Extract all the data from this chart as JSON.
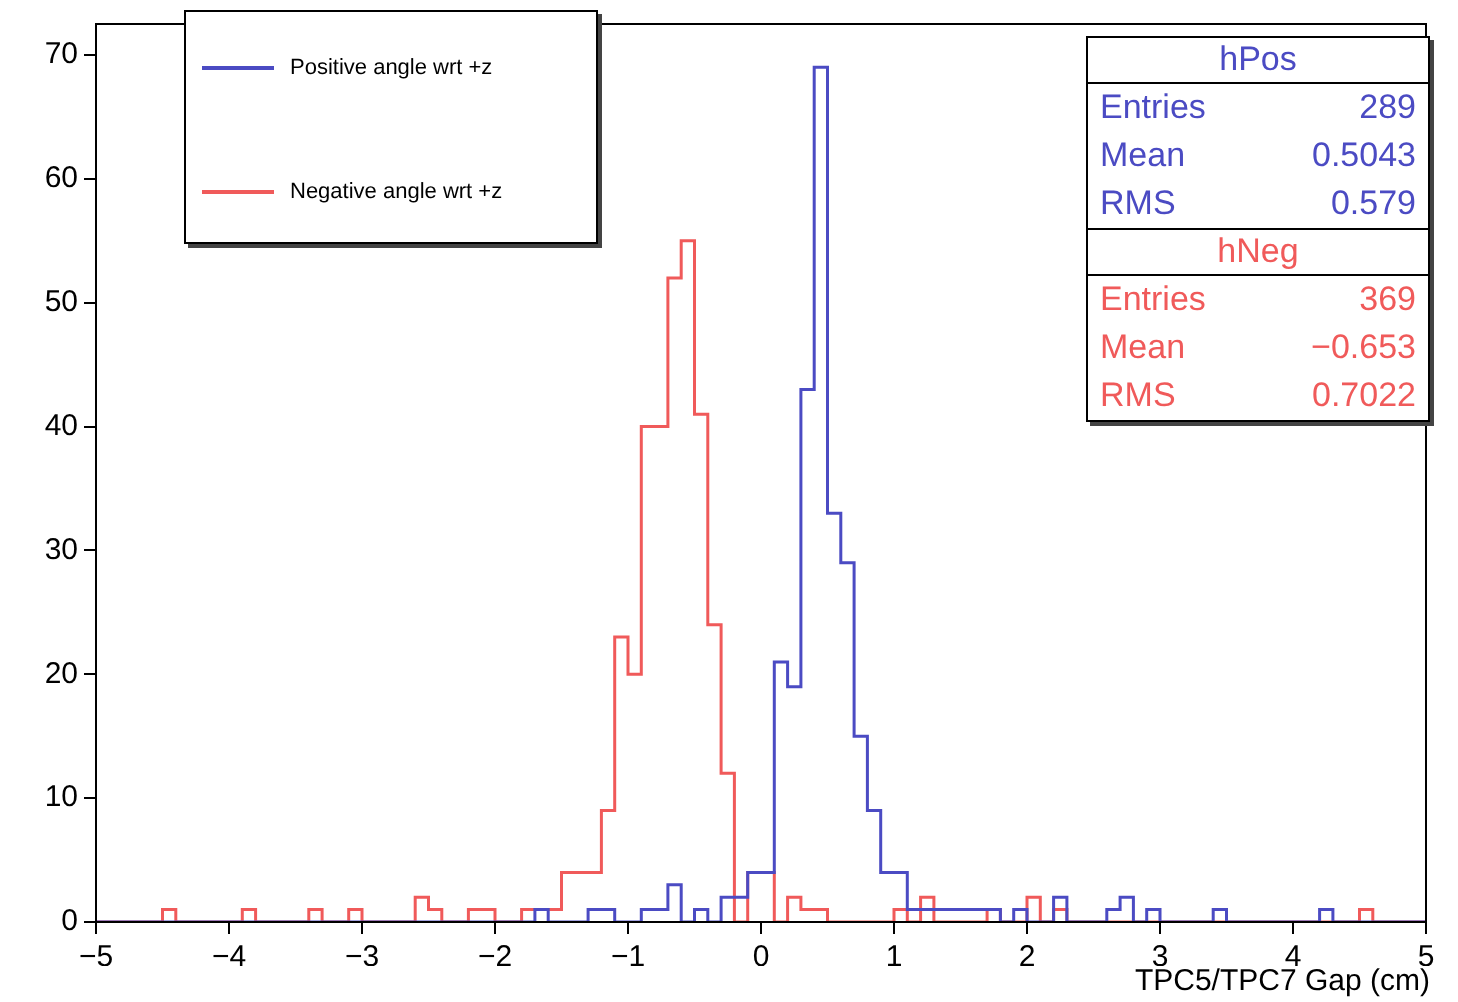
{
  "chart_data": {
    "type": "histogram",
    "xlabel": "TPC5/TPC7 Gap (cm)",
    "bins": [
      -5,
      -4.9,
      -4.8,
      -4.7,
      -4.6,
      -4.5,
      -4.4,
      -4.3,
      -4.2,
      -4.1,
      -4,
      -3.9,
      -3.8,
      -3.7,
      -3.6,
      -3.5,
      -3.4,
      -3.3,
      -3.2,
      -3.1,
      -3,
      -2.9,
      -2.8,
      -2.7,
      -2.6,
      -2.5,
      -2.4,
      -2.3,
      -2.2,
      -2.1,
      -2,
      -1.9,
      -1.8,
      -1.7,
      -1.6,
      -1.5,
      -1.4,
      -1.3,
      -1.2,
      -1.1,
      -1,
      -0.9,
      -0.8,
      -0.7,
      -0.6,
      -0.5,
      -0.4,
      -0.3,
      -0.2,
      -0.1,
      0,
      0.1,
      0.2,
      0.3,
      0.4,
      0.5,
      0.6,
      0.7,
      0.8,
      0.9,
      1,
      1.1,
      1.2,
      1.3,
      1.4,
      1.5,
      1.6,
      1.7,
      1.8,
      1.9,
      2,
      2.1,
      2.2,
      2.3,
      2.4,
      2.5,
      2.6,
      2.7,
      2.8,
      2.9,
      3,
      3.1,
      3.2,
      3.3,
      3.4,
      3.5,
      3.6,
      3.7,
      3.8,
      3.9,
      4,
      4.1,
      4.2,
      4.3,
      4.4,
      4.5,
      4.6,
      4.7,
      4.8,
      4.9,
      5
    ],
    "series": [
      {
        "name": "Positive angle wrt +z",
        "color": "#4b4bc3",
        "values": [
          0,
          0,
          0,
          0,
          0,
          0,
          0,
          0,
          0,
          0,
          0,
          0,
          0,
          0,
          0,
          0,
          0,
          0,
          0,
          0,
          0,
          0,
          0,
          0,
          0,
          0,
          0,
          0,
          0,
          0,
          0,
          0,
          0,
          1,
          0,
          0,
          0,
          1,
          1,
          0,
          0,
          1,
          1,
          3,
          0,
          1,
          0,
          2,
          2,
          4,
          4,
          21,
          19,
          43,
          69,
          33,
          29,
          15,
          9,
          4,
          4,
          1,
          1,
          1,
          1,
          1,
          1,
          1,
          0,
          1,
          0,
          0,
          2,
          0,
          0,
          0,
          1,
          2,
          0,
          1,
          0,
          0,
          0,
          0,
          1,
          0,
          0,
          0,
          0,
          0,
          0,
          0,
          1,
          0,
          0,
          0,
          0,
          0,
          0,
          0
        ]
      },
      {
        "name": "Negative angle wrt +z",
        "color": "#f05a5a",
        "values": [
          0,
          0,
          0,
          0,
          0,
          1,
          0,
          0,
          0,
          0,
          0,
          1,
          0,
          0,
          0,
          0,
          1,
          0,
          0,
          1,
          0,
          0,
          0,
          0,
          2,
          1,
          0,
          0,
          1,
          1,
          0,
          0,
          1,
          1,
          1,
          4,
          4,
          4,
          9,
          23,
          20,
          40,
          40,
          52,
          55,
          41,
          24,
          12,
          0,
          4,
          4,
          0,
          2,
          1,
          1,
          0,
          0,
          0,
          0,
          0,
          1,
          0,
          2,
          0,
          0,
          0,
          0,
          1,
          0,
          0,
          2,
          0,
          1,
          0,
          0,
          0,
          0,
          0,
          0,
          0,
          0,
          0,
          0,
          0,
          0,
          0,
          0,
          0,
          0,
          0,
          0,
          0,
          0,
          0,
          0,
          1,
          0,
          0,
          0,
          0
        ]
      }
    ],
    "xlim": [
      -5,
      5
    ],
    "xticks": [
      -5,
      -4,
      -3,
      -2,
      -1,
      0,
      1,
      2,
      3,
      4,
      5
    ],
    "ylim": [
      0,
      72.5
    ],
    "yticks": [
      0,
      10,
      20,
      30,
      40,
      50,
      60,
      70
    ],
    "legend": "top left",
    "grid": false,
    "annotations": [
      "hPos",
      "Entries 289",
      "Mean 0.5043",
      "RMS 0.579",
      "hNeg",
      "Entries 369",
      "Mean −0.653",
      "RMS 0.7022"
    ]
  }
}
